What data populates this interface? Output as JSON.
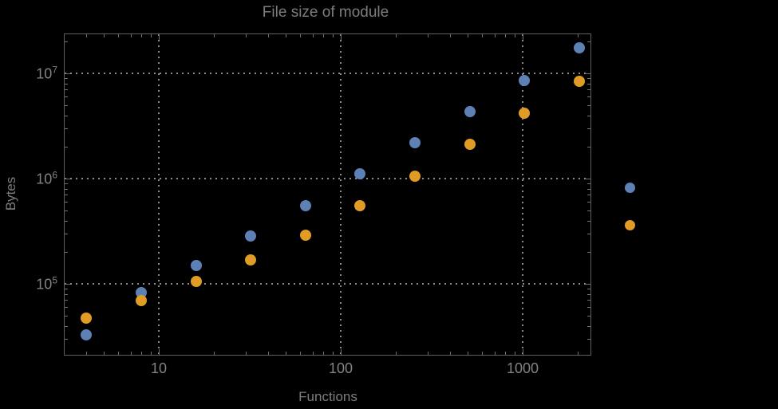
{
  "chart_data": {
    "type": "scatter",
    "title": "File size of module",
    "xlabel": "Functions",
    "ylabel": "Bytes",
    "xscale": "log",
    "yscale": "log",
    "xlim": [
      3,
      2400
    ],
    "ylim": [
      21000,
      24000000
    ],
    "grid": "dotted gray lines at decades (10,100,1000 and 1e5,1e6,1e7)",
    "x": [
      4,
      8,
      16,
      32,
      64,
      128,
      256,
      512,
      1024,
      2048
    ],
    "series": [
      {
        "name": "series-1-blue",
        "color": "#5e81b5",
        "values": [
          33000,
          82000,
          150000,
          285000,
          550000,
          1120000,
          2200000,
          4300000,
          8500000,
          17500000
        ]
      },
      {
        "name": "series-2-orange",
        "color": "#e09c24",
        "values": [
          47000,
          69000,
          105000,
          170000,
          290000,
          550000,
          1050000,
          2100000,
          4200000,
          8400000
        ]
      }
    ],
    "x_ticks": [
      {
        "v": 10,
        "label": "10"
      },
      {
        "v": 100,
        "label": "100"
      },
      {
        "v": 1000,
        "label": "1000"
      }
    ],
    "y_ticks": [
      {
        "v": 100000,
        "mantissa": "10",
        "exponent": "5"
      },
      {
        "v": 1000000,
        "mantissa": "10",
        "exponent": "6"
      },
      {
        "v": 10000000,
        "mantissa": "10",
        "exponent": "7"
      }
    ],
    "legend": {
      "position": "right-of-plot",
      "entries": [
        {
          "color": "#5e81b5",
          "label": ""
        },
        {
          "color": "#e09c24",
          "label": ""
        }
      ]
    }
  },
  "colors": {
    "background": "#000000",
    "frame": "#5f5f5f",
    "tick": "#6e6e6e",
    "grid": "#8c8c8c",
    "text": "#7d7d7d",
    "series_blue": "#5e81b5",
    "series_orange": "#e09c24"
  }
}
